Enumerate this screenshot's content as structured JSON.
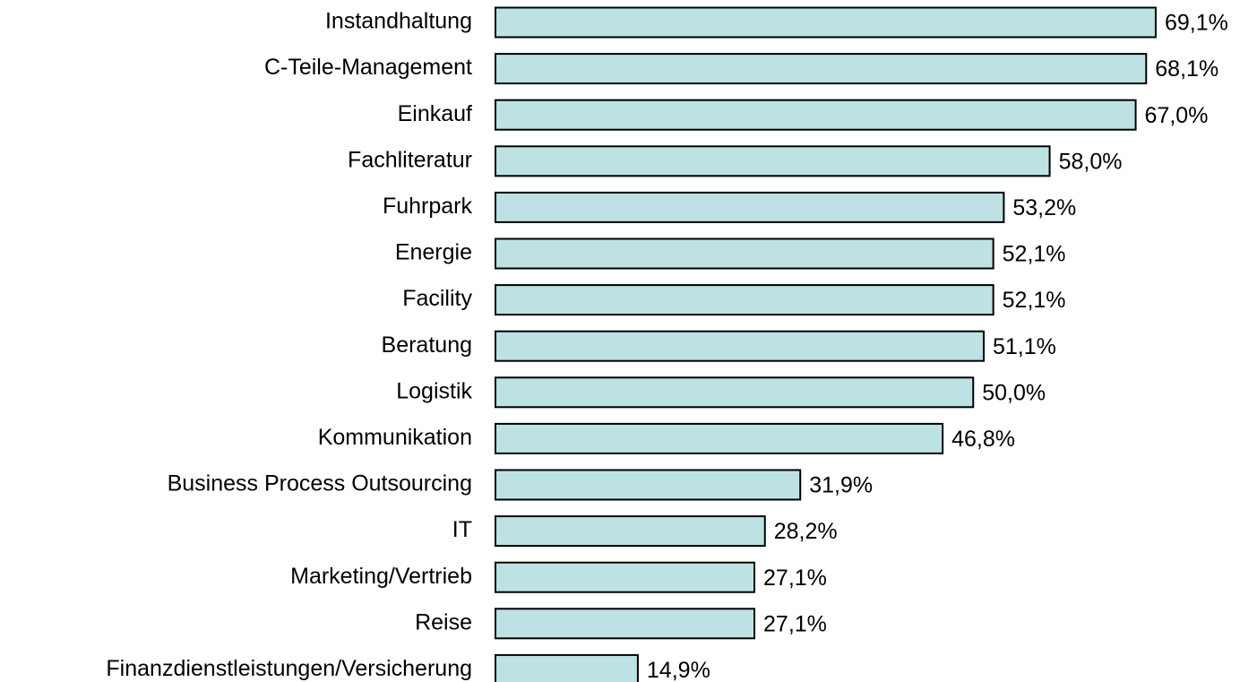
{
  "chart_data": {
    "type": "bar",
    "orientation": "horizontal",
    "categories": [
      "Instandhaltung",
      "C-Teile-Management",
      "Einkauf",
      "Fachliteratur",
      "Fuhrpark",
      "Energie",
      "Facility",
      "Beratung",
      "Logistik",
      "Kommunikation",
      "Business Process Outsourcing",
      "IT",
      "Marketing/Vertrieb",
      "Reise",
      "Finanzdienstleistungen/Versicherung"
    ],
    "values": [
      69.1,
      68.1,
      67.0,
      58.0,
      53.2,
      52.1,
      52.1,
      51.1,
      50.0,
      46.8,
      31.9,
      28.2,
      27.1,
      27.1,
      14.9
    ],
    "value_labels": [
      "69,1%",
      "68,1%",
      "67,0%",
      "58,0%",
      "53,2%",
      "52,1%",
      "52,1%",
      "51,1%",
      "50,0%",
      "46,8%",
      "31,9%",
      "28,2%",
      "27,1%",
      "27,1%",
      "14,9%"
    ],
    "color": "#bde2e4"
  }
}
